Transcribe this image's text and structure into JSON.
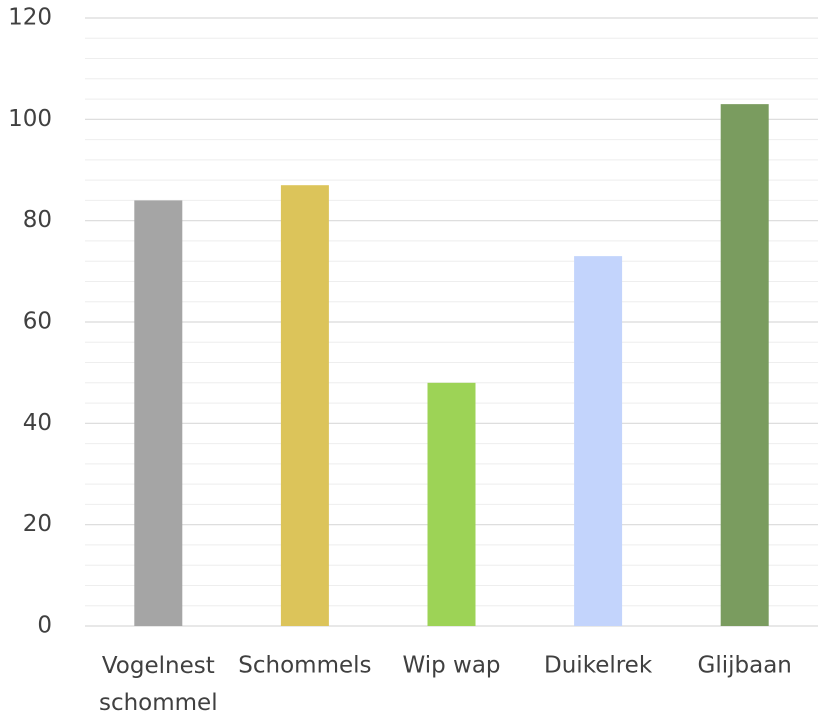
{
  "chart_data": {
    "type": "bar",
    "categories": [
      "Vogelnest schommel",
      "Schommels",
      "Wip wap",
      "Duikelrek",
      "Glijbaan"
    ],
    "values": [
      84,
      87,
      48,
      73,
      103
    ],
    "colors": [
      "#a5a5a5",
      "#dcc45a",
      "#9dd356",
      "#c3d4fc",
      "#7a9c5f"
    ],
    "ylim": [
      0,
      120
    ],
    "yticks": [
      0,
      20,
      40,
      60,
      80,
      100,
      120
    ],
    "grid": true,
    "minor_grid": true
  }
}
